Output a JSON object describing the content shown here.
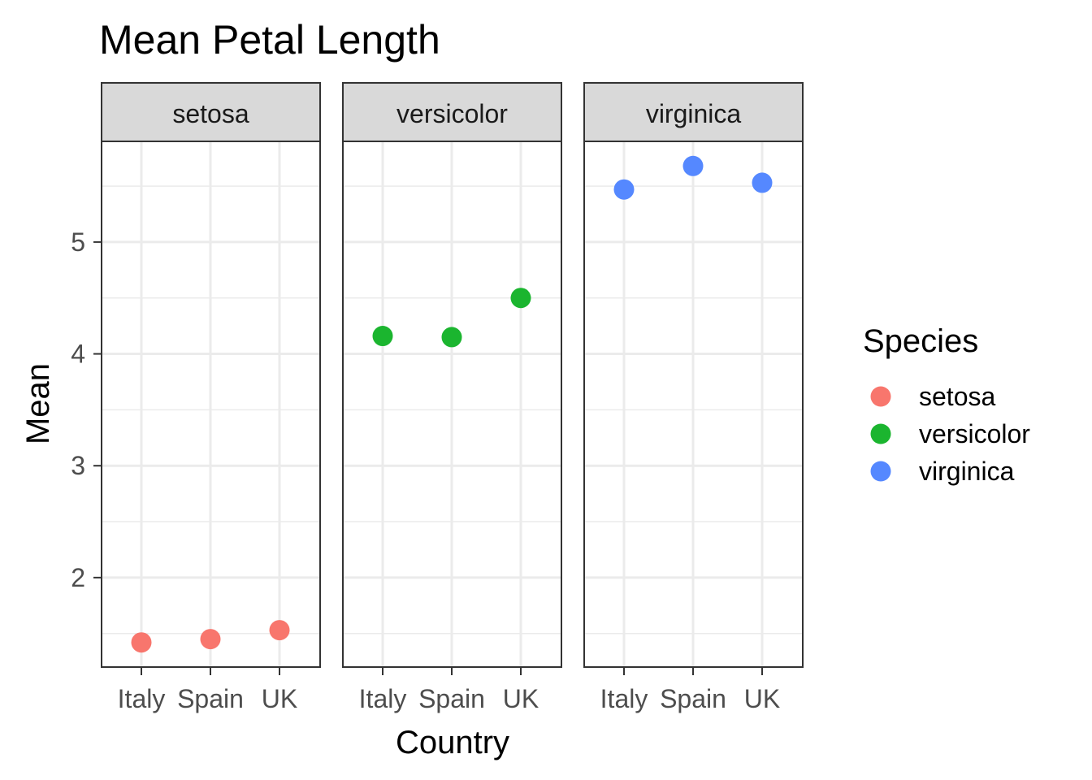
{
  "chart_data": {
    "type": "scatter",
    "title": "Mean Petal Length",
    "xlabel": "Country",
    "ylabel": "Mean",
    "categories": [
      "Italy",
      "Spain",
      "UK"
    ],
    "ylim": [
      1.2,
      5.9
    ],
    "yticks": [
      2,
      3,
      4,
      5
    ],
    "grid": true,
    "facets": [
      "setosa",
      "versicolor",
      "virginica"
    ],
    "legend": {
      "title": "Species",
      "position": "right"
    },
    "series": [
      {
        "name": "setosa",
        "color": "#F8766D",
        "values": [
          1.42,
          1.45,
          1.53
        ]
      },
      {
        "name": "versicolor",
        "color": "#1BB52F",
        "values": [
          4.16,
          4.15,
          4.5
        ]
      },
      {
        "name": "virginica",
        "color": "#5588FF",
        "values": [
          5.47,
          5.68,
          5.53
        ]
      }
    ]
  }
}
